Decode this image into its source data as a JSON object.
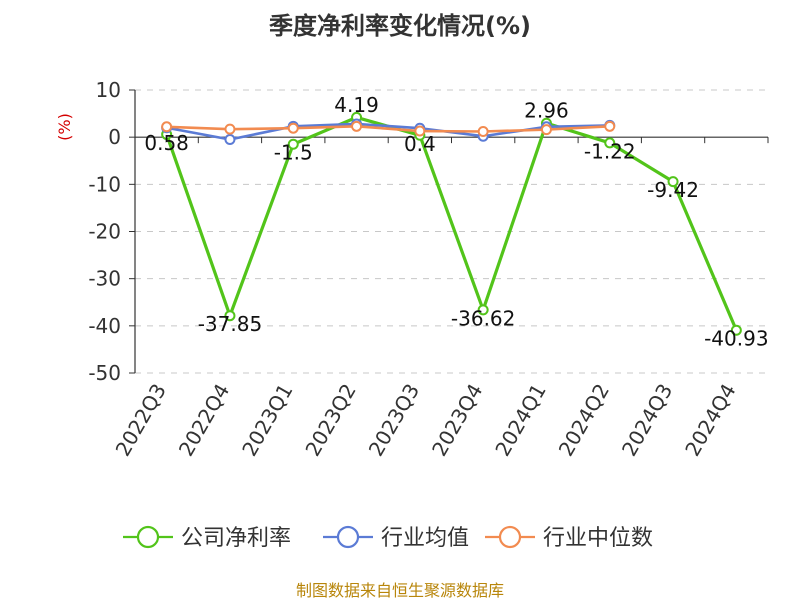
{
  "chart_data": {
    "type": "line",
    "title": "季度净利率变化情况(%)",
    "ylabel": "(%)",
    "categories": [
      "2022Q3",
      "2022Q4",
      "2023Q1",
      "2023Q2",
      "2023Q3",
      "2023Q4",
      "2024Q1",
      "2024Q2",
      "2024Q3",
      "2024Q4"
    ],
    "ylim": [
      -50,
      10
    ],
    "yticks": [
      10,
      0,
      -10,
      -20,
      -30,
      -40,
      -50
    ],
    "grid": true,
    "legend_position": "bottom",
    "series": [
      {
        "name": "公司净利率",
        "color": "#52c41a",
        "values": [
          0.58,
          -37.85,
          -1.5,
          4.19,
          0.4,
          -36.62,
          2.96,
          -1.22,
          -9.42,
          -40.93
        ],
        "labels": [
          "0.58",
          "-37.85",
          "-1.5",
          "4.19",
          "0.4",
          "-36.62",
          "2.96",
          "-1.22",
          "-9.42",
          "-40.93"
        ]
      },
      {
        "name": "行业均值",
        "color": "#5b7bd5",
        "values": [
          2.0,
          -0.5,
          2.3,
          2.8,
          1.9,
          0.2,
          2.2,
          2.5,
          null,
          null
        ]
      },
      {
        "name": "行业中位数",
        "color": "#f28b50",
        "values": [
          2.2,
          1.7,
          1.9,
          2.3,
          1.3,
          1.2,
          1.6,
          2.3,
          null,
          null
        ]
      }
    ],
    "source": "制图数据来自恒生聚源数据库"
  }
}
